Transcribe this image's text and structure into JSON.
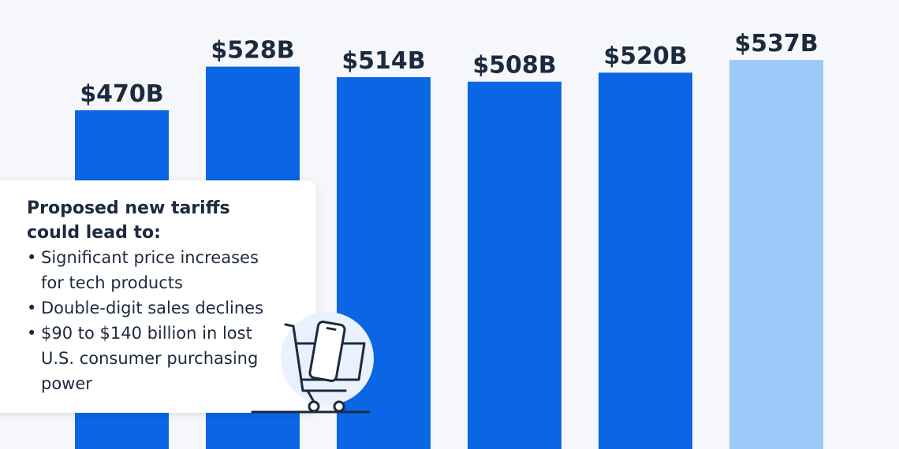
{
  "chart_data": {
    "type": "bar",
    "values": [
      470,
      528,
      514,
      508,
      520,
      537
    ],
    "labels": [
      "$470B",
      "$528B",
      "$514B",
      "$508B",
      "$520B",
      "$537B"
    ],
    "colors": [
      "#0a66e4",
      "#0a66e4",
      "#0a66e4",
      "#0a66e4",
      "#0a66e4",
      "#9ccbf9"
    ],
    "highlighted_index": 5,
    "label_color": "#1c2a3e"
  },
  "callout": {
    "title": "Proposed new tariffs could lead to:",
    "bullets": [
      "Significant price increases for tech products",
      "Double-digit sales declines",
      "$90 to $140 billion in lost U.S. consumer purchasing power"
    ],
    "bullet_symbol": "•",
    "illustration_icon": "shopping-cart-with-smartphone-icon"
  },
  "colors": {
    "background": "#f5f7fa",
    "bar": "#0a66e4",
    "bar_highlight": "#9ccbf9",
    "text": "#1c2a3e",
    "icon_circle": "#e8f1fc"
  }
}
